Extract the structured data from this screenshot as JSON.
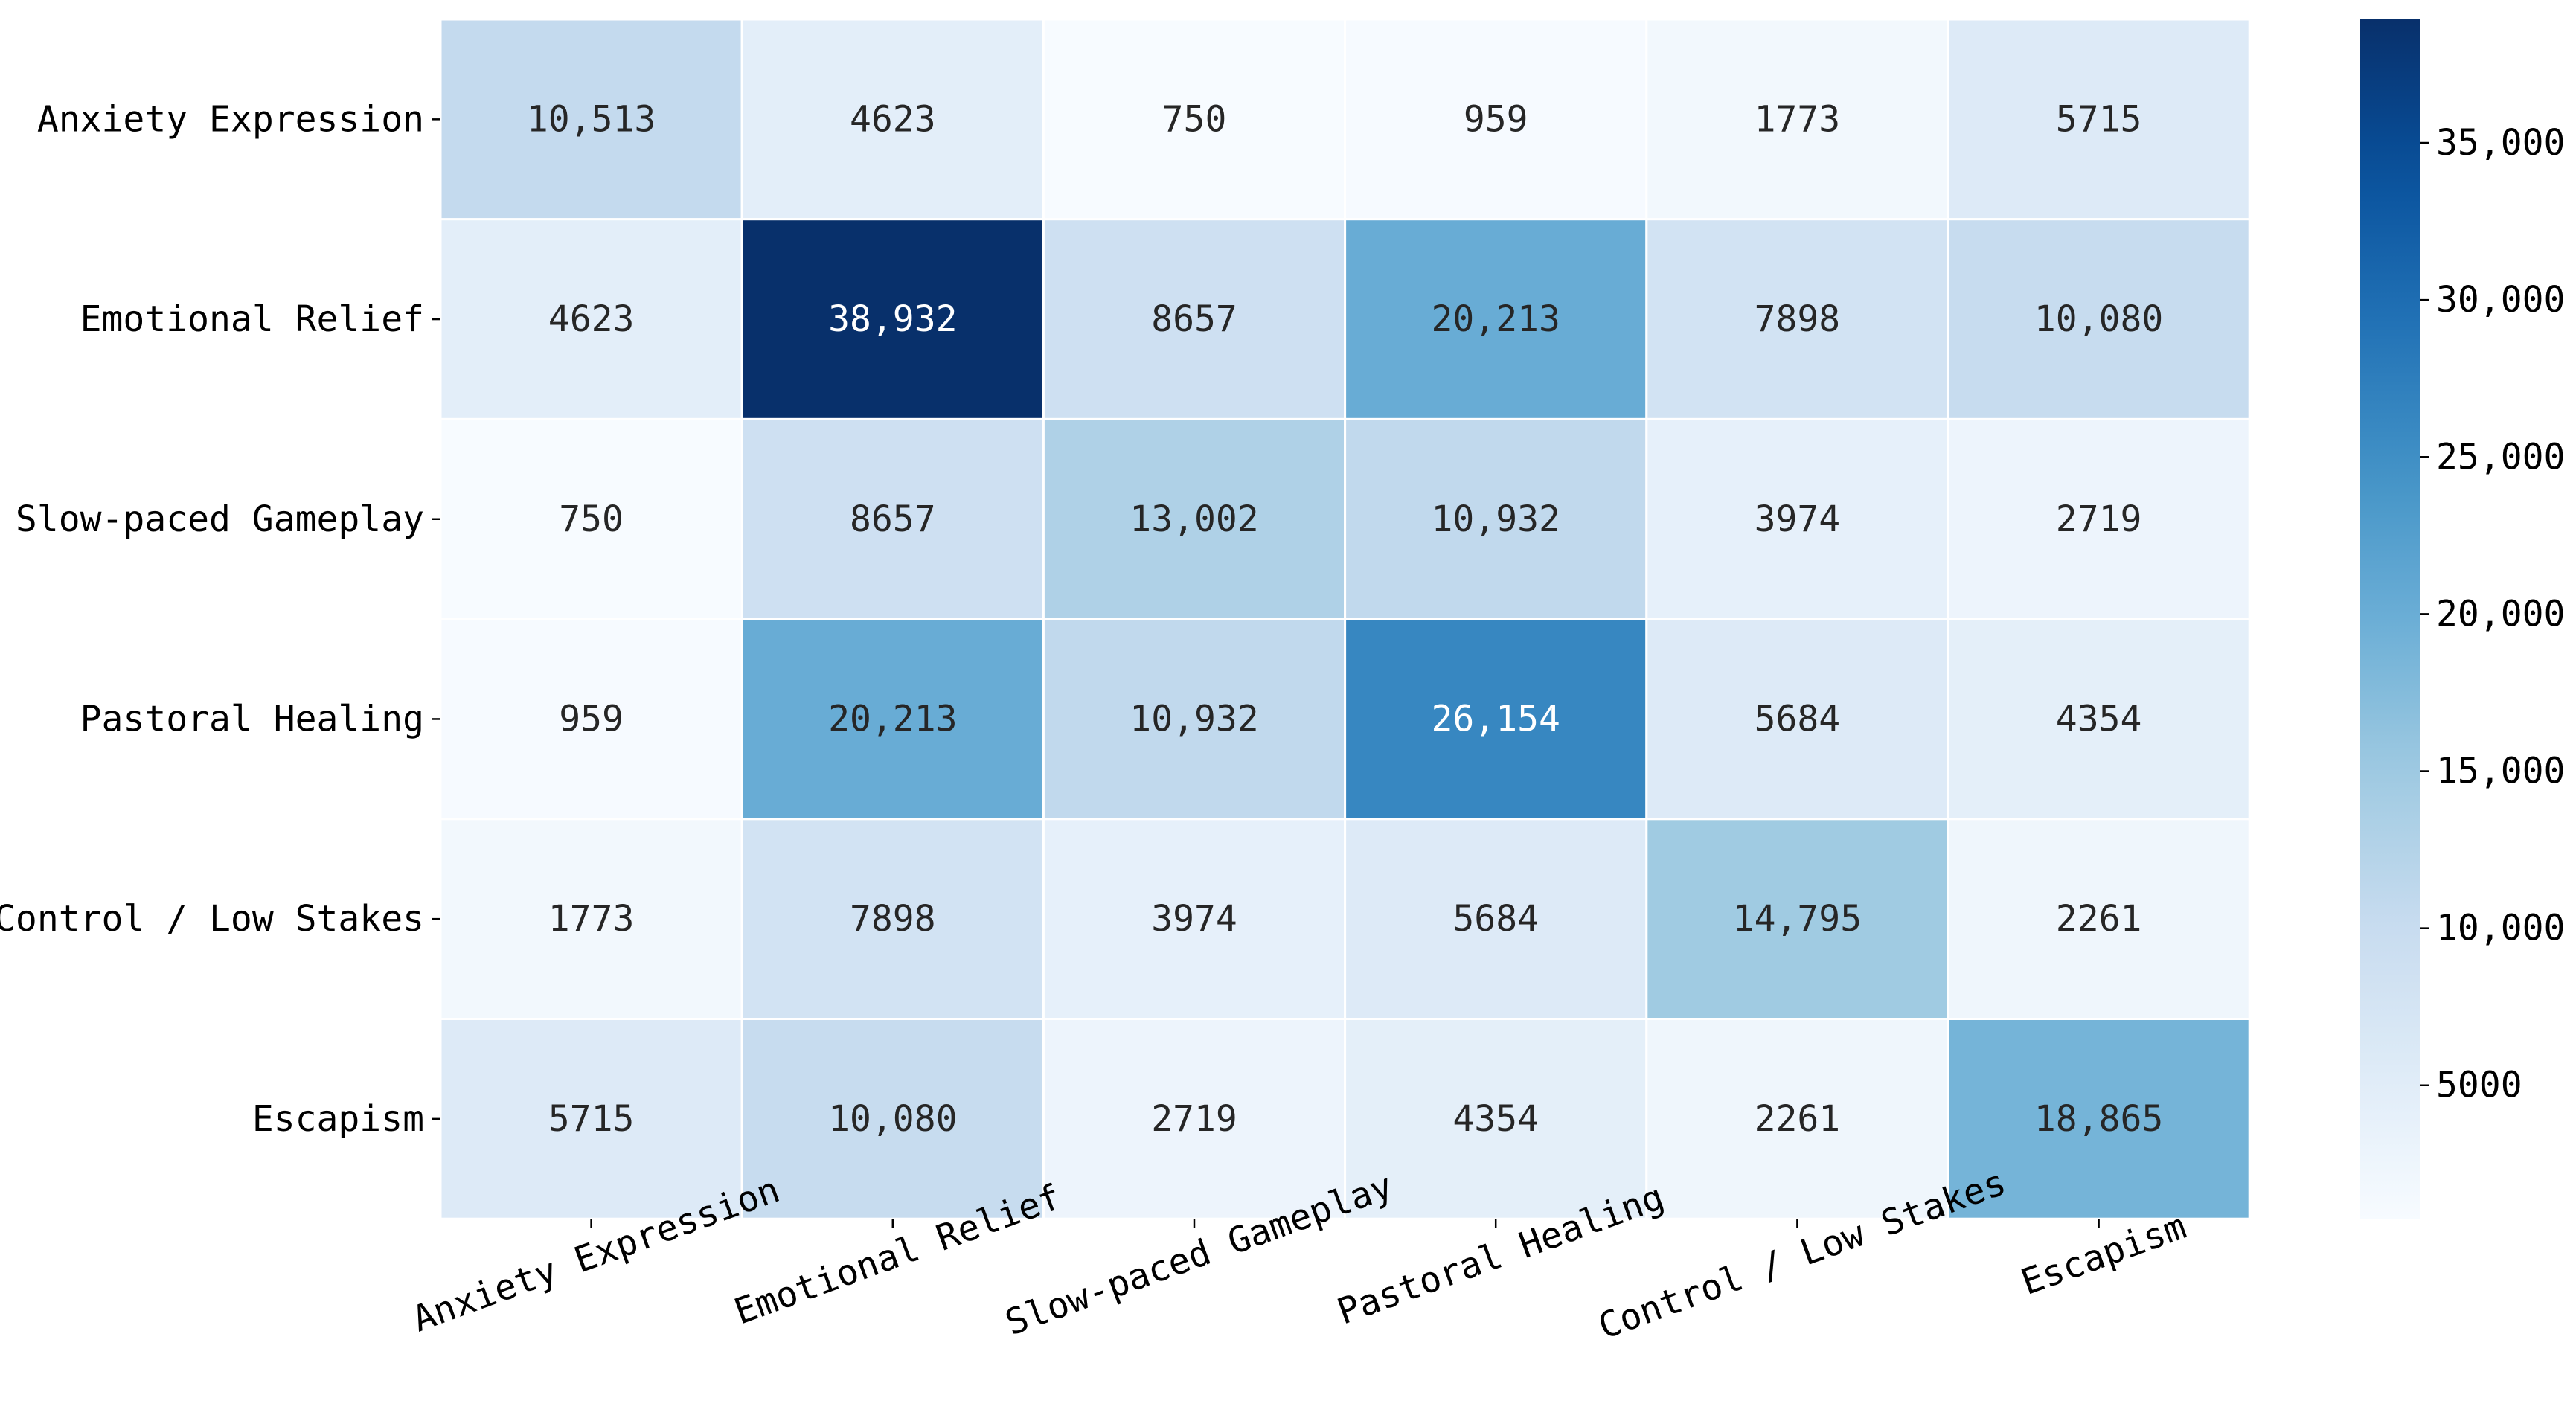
{
  "chart_data": {
    "type": "heatmap",
    "title": "",
    "xlabel": "",
    "ylabel": "",
    "rows": [
      "Anxiety Expression",
      "Emotional Relief",
      "Slow-paced Gameplay",
      "Pastoral Healing",
      "Control / Low Stakes",
      "Escapism"
    ],
    "columns": [
      "Anxiety Expression",
      "Emotional Relief",
      "Slow-paced Gameplay",
      "Pastoral Healing",
      "Control / Low Stakes",
      "Escapism"
    ],
    "values": [
      [
        10513,
        4623,
        750,
        959,
        1773,
        5715
      ],
      [
        4623,
        38932,
        8657,
        20213,
        7898,
        10080
      ],
      [
        750,
        8657,
        13002,
        10932,
        3974,
        2719
      ],
      [
        959,
        20213,
        10932,
        26154,
        5684,
        4354
      ],
      [
        1773,
        7898,
        3974,
        5684,
        14795,
        2261
      ],
      [
        5715,
        10080,
        2719,
        4354,
        2261,
        18865
      ]
    ],
    "value_labels": [
      [
        "10,513",
        "4623",
        "750",
        "959",
        "1773",
        "5715"
      ],
      [
        "4623",
        "38,932",
        "8657",
        "20,213",
        "7898",
        "10,080"
      ],
      [
        "750",
        "8657",
        "13,002",
        "10,932",
        "3974",
        "2719"
      ],
      [
        "959",
        "20,213",
        "10,932",
        "26,154",
        "5684",
        "4354"
      ],
      [
        "1773",
        "7898",
        "3974",
        "5684",
        "14,795",
        "2261"
      ],
      [
        "5715",
        "10,080",
        "2719",
        "4354",
        "2261",
        "18,865"
      ]
    ],
    "colormap": "Blues",
    "colorbar": {
      "min": 750,
      "max": 38932,
      "ticks": [
        5000,
        10000,
        15000,
        20000,
        25000,
        30000,
        35000
      ],
      "tick_labels": [
        "5000",
        "10,000",
        "15,000",
        "20,000",
        "25,000",
        "30,000",
        "35,000"
      ]
    },
    "x_tick_rotation_deg": 20
  }
}
